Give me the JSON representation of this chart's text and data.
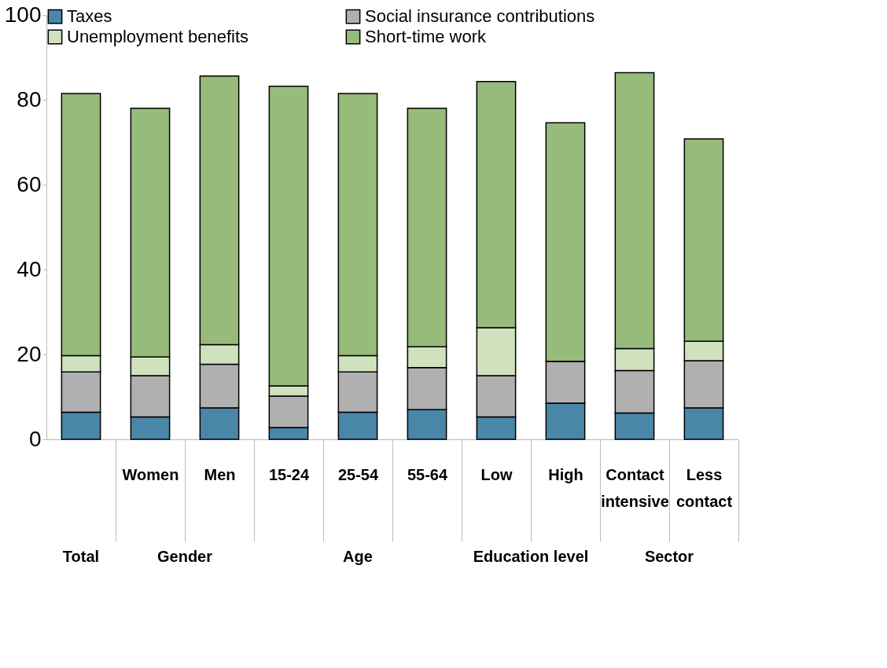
{
  "chart_data": {
    "type": "bar",
    "stacked": true,
    "categories": [
      null,
      "Women",
      "Men",
      "15-24",
      "25-54",
      "55-64",
      "Low",
      "High",
      "Contact intensive",
      "Less contact"
    ],
    "series": [
      {
        "name": "Taxes",
        "color": "#4a86a8",
        "values": [
          6.4,
          5.3,
          7.4,
          2.8,
          6.4,
          7.0,
          5.3,
          8.5,
          6.2,
          7.4
        ]
      },
      {
        "name": "Social insurance contributions",
        "color": "#b0b0b0",
        "values": [
          9.5,
          9.7,
          10.3,
          7.4,
          9.5,
          9.9,
          9.7,
          9.9,
          10.0,
          11.1
        ]
      },
      {
        "name": "Unemployment benefits",
        "color": "#cfe2bd",
        "values": [
          3.8,
          4.4,
          4.6,
          2.4,
          3.8,
          4.9,
          11.3,
          0,
          5.2,
          4.6
        ]
      },
      {
        "name": "Short-time work",
        "color": "#97bb7a",
        "values": [
          61.8,
          58.6,
          63.3,
          70.6,
          61.8,
          56.2,
          58.0,
          56.2,
          65.0,
          47.7
        ]
      }
    ],
    "ylim": [
      0,
      100
    ],
    "yticks": [
      0,
      20,
      40,
      60,
      80,
      100
    ],
    "grid": false,
    "legend": "top",
    "annotations": [
      "Total",
      "Gender",
      "Age",
      "Education level",
      "Sector"
    ]
  }
}
